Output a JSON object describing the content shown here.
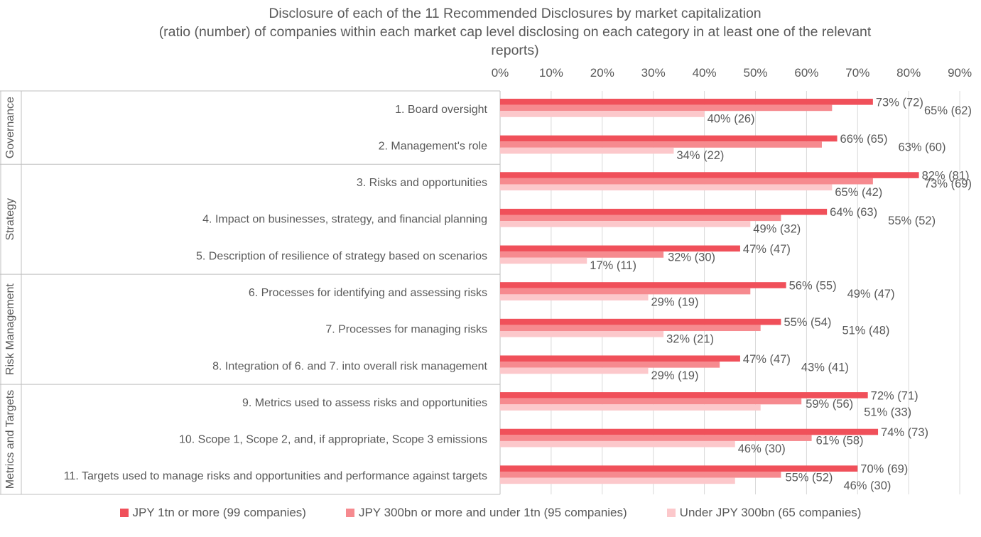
{
  "chart_data": {
    "type": "bar",
    "orientation": "horizontal",
    "title": "Disclosure of each of the 11 Recommended Disclosures by market capitalization",
    "subtitle_lines": [
      "(ratio (number) of companies within each market cap level disclosing on each category in at least one of the relevant",
      "reports)"
    ],
    "x_ticks": [
      "0%",
      "10%",
      "20%",
      "30%",
      "40%",
      "50%",
      "60%",
      "70%",
      "80%",
      "90%"
    ],
    "xlim": [
      0,
      90
    ],
    "grid": true,
    "legend_position": "bottom",
    "groups": [
      {
        "label": "Governance",
        "categories": [
          0,
          1
        ]
      },
      {
        "label": "Strategy",
        "categories": [
          2,
          3,
          4
        ]
      },
      {
        "label": "Risk Management",
        "categories": [
          5,
          6,
          7
        ]
      },
      {
        "label": "Metrics and Targets",
        "categories": [
          8,
          9,
          10
        ]
      }
    ],
    "categories": [
      "1. Board oversight",
      "2. Management's role",
      "3. Risks and opportunities",
      "4. Impact on businesses, strategy, and financial planning",
      "5. Description of resilience of strategy based on scenarios",
      "6. Processes for identifying and assessing risks",
      "7. Processes for managing risks",
      "8. Integration of 6. and 7. into overall risk management",
      "9. Metrics used to assess risks and opportunities",
      "10. Scope 1, Scope 2, and, if appropriate, Scope 3 emissions",
      "11. Targets used to manage risks and opportunities and performance against targets"
    ],
    "series": [
      {
        "name": "JPY 1tn or more (99 companies)",
        "color": "#F0505A",
        "values": [
          73,
          66,
          82,
          64,
          47,
          56,
          55,
          47,
          72,
          74,
          70
        ],
        "labels": [
          "73% (72)",
          "66% (65)",
          "82% (81)",
          "64% (63)",
          "47% (47)",
          "56% (55)",
          "55% (54)",
          "47% (47)",
          "72% (71)",
          "74% (73)",
          "70% (69)"
        ]
      },
      {
        "name": "JPY 300bn or more and under 1tn (95 companies)",
        "color": "#F68A8F",
        "values": [
          65,
          63,
          73,
          55,
          32,
          49,
          51,
          43,
          59,
          61,
          55
        ],
        "labels": [
          "65% (62)",
          "63% (60)",
          "73% (69)",
          "55% (52)",
          "32% (30)",
          "49% (47)",
          "51% (48)",
          "43% (41)",
          "59% (56)",
          "61% (58)",
          "55% (52)"
        ]
      },
      {
        "name": "Under JPY 300bn (65 companies)",
        "color": "#FCC8CB",
        "values": [
          40,
          34,
          65,
          49,
          17,
          29,
          32,
          29,
          51,
          46,
          46
        ],
        "labels": [
          "40% (26)",
          "34% (22)",
          "65% (42)",
          "49% (32)",
          "17% (11)",
          "29% (19)",
          "32% (21)",
          "29% (19)",
          "51% (33)",
          "46% (30)",
          "46% (30)"
        ]
      }
    ]
  }
}
